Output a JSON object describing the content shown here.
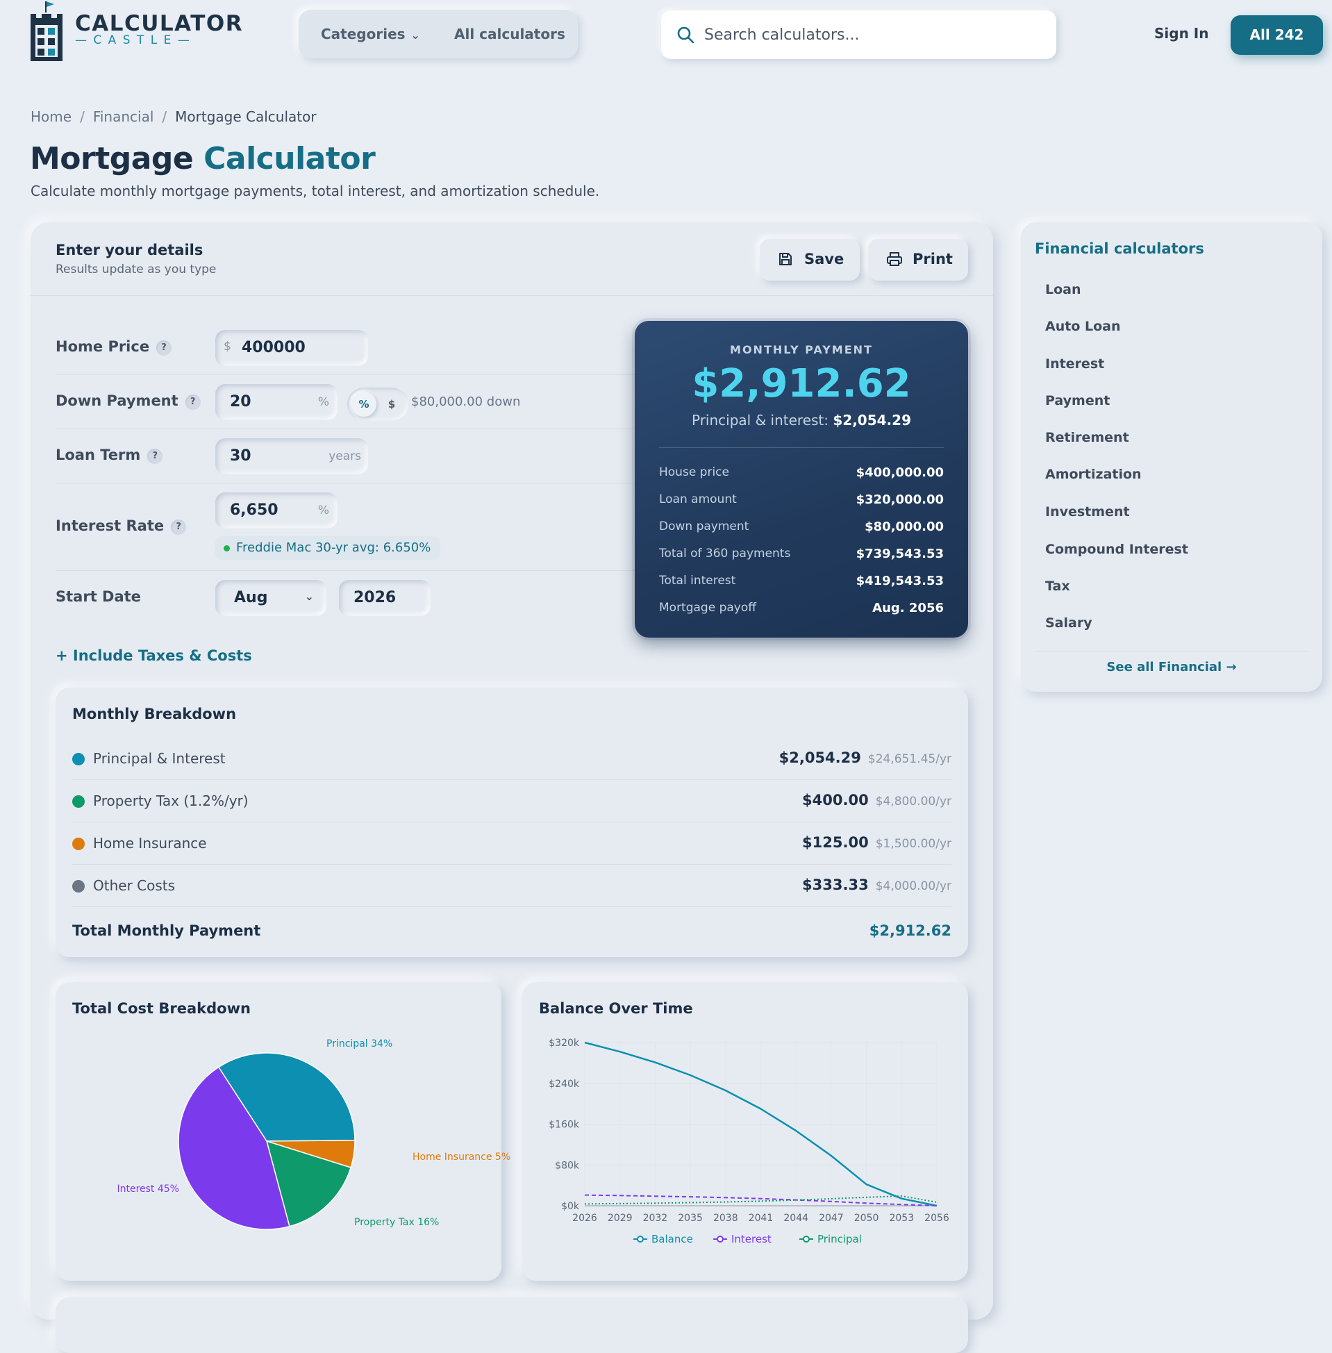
{
  "brand": {
    "name_top": "CALCULATOR",
    "name_bottom": "— C A S T L E —"
  },
  "nav": {
    "categories": "Categories",
    "all_calculators": "All calculators"
  },
  "search": {
    "placeholder": "Search calculators..."
  },
  "auth": {
    "sign_in": "Sign In",
    "all_count": "All 242"
  },
  "breadcrumb": {
    "home": "Home",
    "section": "Financial",
    "current": "Mortgage Calculator",
    "sep": "/"
  },
  "page": {
    "title_main": "Mortgage",
    "title_accent": "Calculator",
    "subtitle": "Calculate monthly mortgage payments, total interest, and amortization schedule."
  },
  "form": {
    "title": "Enter your details",
    "subtitle": "Results update as you type",
    "save": "Save",
    "print": "Print",
    "help": "?",
    "home_price": {
      "label": "Home Price",
      "prefix": "$",
      "value": "400000"
    },
    "down_payment": {
      "label": "Down Payment",
      "value": "20",
      "unit": "%",
      "toggle_pct": "%",
      "toggle_dollar": "$",
      "note": "$80,000.00 down"
    },
    "loan_term": {
      "label": "Loan Term",
      "value": "30",
      "unit": "years"
    },
    "interest_rate": {
      "label": "Interest Rate",
      "value": "6,650",
      "unit": "%",
      "hint": "Freddie Mac 30-yr avg: 6.650%"
    },
    "start_date": {
      "label": "Start Date",
      "month": "Aug",
      "year": "2026"
    },
    "include_link": "+ Include Taxes & Costs"
  },
  "result": {
    "caption": "MONTHLY PAYMENT",
    "amount": "$2,912.62",
    "pi_label": "Principal & interest:",
    "pi_value": "$2,054.29",
    "rows": [
      {
        "label": "House price",
        "value": "$400,000.00"
      },
      {
        "label": "Loan amount",
        "value": "$320,000.00"
      },
      {
        "label": "Down payment",
        "value": "$80,000.00"
      },
      {
        "label": "Total of 360 payments",
        "value": "$739,543.53"
      },
      {
        "label": "Total interest",
        "value": "$419,543.53"
      },
      {
        "label": "Mortgage payoff",
        "value": "Aug. 2056"
      }
    ]
  },
  "breakdown": {
    "title": "Monthly Breakdown",
    "rows": [
      {
        "name": "Principal & Interest",
        "amount": "$2,054.29",
        "yearly": "$24,651.45/yr",
        "color": "#0c8fb0"
      },
      {
        "name": "Property Tax (1.2%/yr)",
        "amount": "$400.00",
        "yearly": "$4,800.00/yr",
        "color": "#0e9a6a"
      },
      {
        "name": "Home Insurance",
        "amount": "$125.00",
        "yearly": "$1,500.00/yr",
        "color": "#df7b0c"
      },
      {
        "name": "Other Costs",
        "amount": "$333.33",
        "yearly": "$4,000.00/yr",
        "color": "#6b7584"
      }
    ],
    "total_label": "Total Monthly Payment",
    "total_value": "$2,912.62"
  },
  "chart_data": [
    {
      "type": "pie",
      "title": "Total Cost Breakdown",
      "slices": [
        {
          "label": "Principal 34%",
          "value": 34,
          "color": "#0c8fb0"
        },
        {
          "label": "Home Insurance 5%",
          "value": 5,
          "color": "#df7b0c"
        },
        {
          "label": "Property Tax 16%",
          "value": 16,
          "color": "#0e9a6a"
        },
        {
          "label": "Interest 45%",
          "value": 45,
          "color": "#7c3aed"
        }
      ]
    },
    {
      "type": "line",
      "title": "Balance Over Time",
      "x": [
        2026,
        2029,
        2032,
        2035,
        2038,
        2041,
        2044,
        2047,
        2050,
        2053,
        2056
      ],
      "xticks": [
        "2026",
        "2029",
        "2032",
        "2035",
        "2038",
        "2041",
        "2044",
        "2047",
        "2050",
        "2053",
        "2056"
      ],
      "yticks": [
        "$0k",
        "$80k",
        "$160k",
        "$240k",
        "$320k"
      ],
      "ylim": [
        0,
        320000
      ],
      "series": [
        {
          "name": "Balance",
          "color": "#0c8fb0",
          "dash": "",
          "values": [
            320000,
            302000,
            281000,
            256000,
            226000,
            190000,
            147000,
            98000,
            42000,
            14000,
            0
          ]
        },
        {
          "name": "Interest",
          "color": "#7c3aed",
          "dash": "6,4",
          "values": [
            21000,
            20000,
            18800,
            17500,
            16000,
            14000,
            11500,
            8500,
            5000,
            2500,
            0
          ]
        },
        {
          "name": "Principal",
          "color": "#0e9a6a",
          "dash": "2,3",
          "values": [
            3600,
            4200,
            5000,
            6100,
            7400,
            9100,
            11200,
            13700,
            16600,
            19000,
            7000
          ]
        }
      ],
      "legend": "bottom"
    }
  ],
  "sidebar": {
    "title": "Financial calculators",
    "items": [
      "Loan",
      "Auto Loan",
      "Interest",
      "Payment",
      "Retirement",
      "Amortization",
      "Investment",
      "Compound Interest",
      "Tax",
      "Salary"
    ],
    "see_all": "See all Financial →"
  },
  "colors": {
    "accent": "#156e85",
    "navy": "#213a5c",
    "highlight": "#4fd4ee"
  }
}
